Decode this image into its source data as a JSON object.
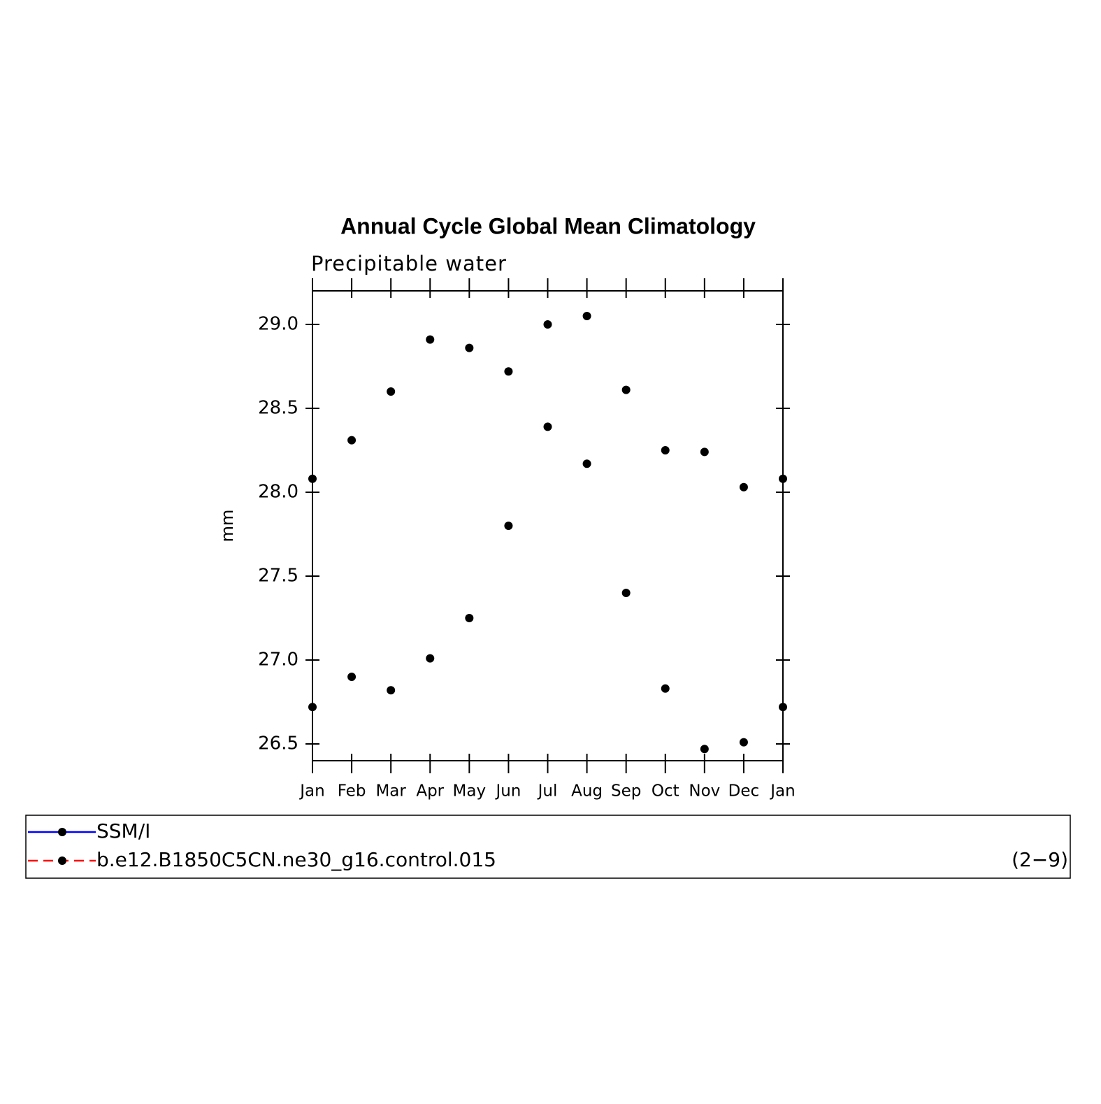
{
  "chart_data": {
    "type": "line",
    "title": "Annual Cycle Global Mean Climatology",
    "subtitle": "Precipitable water",
    "y_label": "mm",
    "annotation": "(2−9)",
    "categories": [
      "Jan",
      "Feb",
      "Mar",
      "Apr",
      "May",
      "Jun",
      "Jul",
      "Aug",
      "Sep",
      "Oct",
      "Nov",
      "Dec",
      "Jan"
    ],
    "series": [
      {
        "name": "SSM/I",
        "color": "#0000ff",
        "line_style": "solid",
        "values": [
          28.08,
          28.31,
          28.6,
          28.91,
          28.86,
          28.72,
          29.0,
          29.05,
          28.61,
          28.25,
          28.24,
          28.03,
          28.08
        ]
      },
      {
        "name": "b.e12.B1850C5CN.ne30_g16.control.015",
        "color": "#ff0000",
        "line_style": "dashed",
        "values": [
          26.72,
          26.9,
          26.82,
          27.01,
          27.25,
          27.8,
          28.39,
          28.17,
          27.4,
          26.83,
          26.47,
          26.51,
          26.72
        ]
      }
    ],
    "marker_color": "#000000",
    "ylim": [
      26.4,
      29.2
    ],
    "yticks": [
      {
        "value": 26.5,
        "label": "26.5"
      },
      {
        "value": 27,
        "label": "27.0"
      },
      {
        "value": 27.5,
        "label": "27.5"
      },
      {
        "value": 28,
        "label": "28.0"
      },
      {
        "value": 28.5,
        "label": "28.5"
      },
      {
        "value": 29,
        "label": "29.0"
      }
    ]
  }
}
